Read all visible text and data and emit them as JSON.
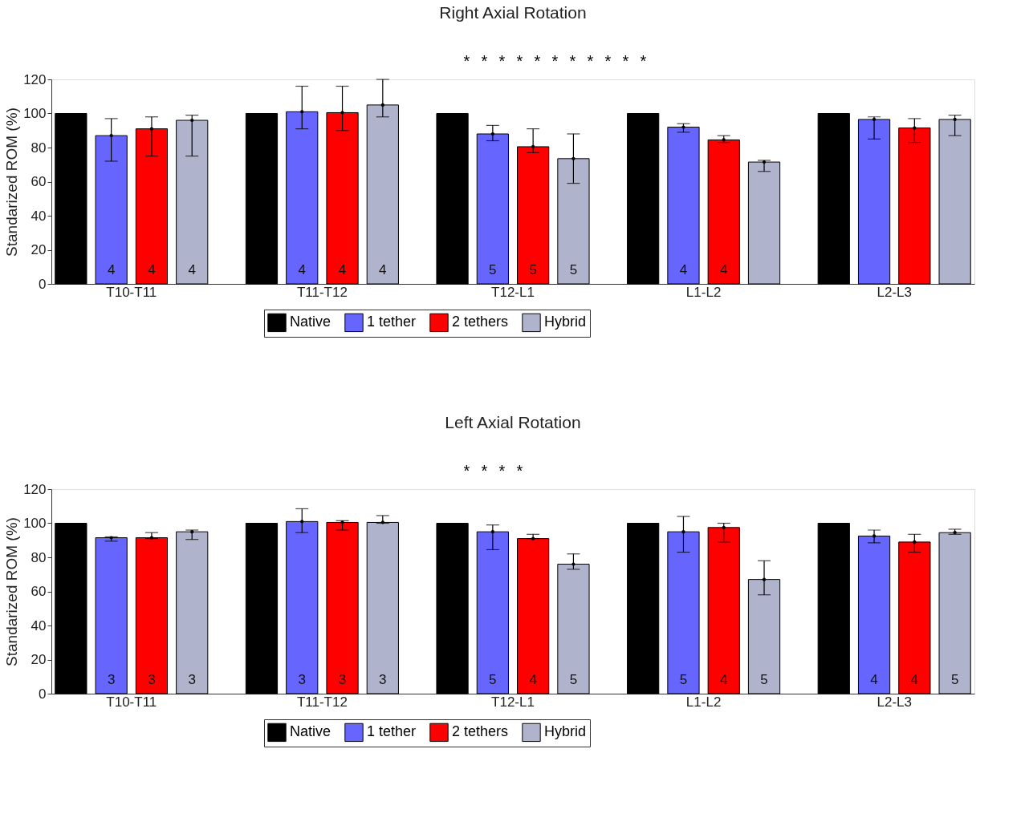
{
  "chart_data": [
    {
      "type": "bar",
      "title": "Right Axial Rotation",
      "ylabel": "Standarized ROM (%)",
      "categories": [
        "T10-T11",
        "T11-T12",
        "T12-L1",
        "L1-L2",
        "L2-L3"
      ],
      "ylim": [
        0,
        120
      ],
      "yticks": [
        0,
        20,
        40,
        60,
        80,
        100,
        120
      ],
      "grid": false,
      "legend": "bottom",
      "series": [
        {
          "name": "Native",
          "color": "#000000",
          "values": [
            100,
            100,
            100,
            100,
            100
          ]
        },
        {
          "name": "1 tether",
          "color": "#6666ff",
          "values": [
            87,
            101,
            88,
            92,
            96.5
          ],
          "errors": [
            [
              72,
              97
            ],
            [
              91,
              116
            ],
            [
              84,
              93
            ],
            [
              89,
              94
            ],
            [
              85,
              98
            ]
          ]
        },
        {
          "name": "2 tethers",
          "color": "#ff0000",
          "values": [
            91,
            100.5,
            80.5,
            84.5,
            91.5
          ],
          "errors": [
            [
              75,
              98
            ],
            [
              90,
              116
            ],
            [
              77,
              91
            ],
            [
              83,
              87
            ],
            [
              83,
              97
            ]
          ]
        },
        {
          "name": "Hybrid",
          "color": "#b0b3cc",
          "values": [
            96,
            105,
            73.5,
            71.5,
            96.5
          ],
          "errors": [
            [
              75,
              99
            ],
            [
              98,
              120
            ],
            [
              59,
              88
            ],
            [
              66,
              72.5
            ],
            [
              87,
              99
            ]
          ]
        }
      ],
      "annotations": [
        "*",
        "*",
        "*",
        "*",
        "*",
        "*",
        "*",
        "*",
        "*",
        "*",
        "*",
        "4",
        "4",
        "4",
        "4",
        "4",
        "4",
        "5",
        "5",
        "5",
        "4",
        "4"
      ]
    },
    {
      "type": "bar",
      "title": "Left Axial Rotation",
      "ylabel": "Standarized ROM (%)",
      "categories": [
        "T10-T11",
        "T11-T12",
        "T12-L1",
        "L1-L2",
        "L2-L3"
      ],
      "ylim": [
        0,
        120
      ],
      "yticks": [
        0,
        20,
        40,
        60,
        80,
        100,
        120
      ],
      "grid": false,
      "legend": "bottom",
      "series": [
        {
          "name": "Native",
          "color": "#000000",
          "values": [
            100,
            100,
            100,
            100,
            100
          ]
        },
        {
          "name": "1 tether",
          "color": "#6666ff",
          "values": [
            91.5,
            101,
            95,
            95,
            92.5
          ],
          "errors": [
            [
              89.5,
              92
            ],
            [
              94.5,
              108.5
            ],
            [
              84.5,
              99
            ],
            [
              83,
              104
            ],
            [
              88.5,
              96
            ]
          ]
        },
        {
          "name": "2 tethers",
          "color": "#ff0000",
          "values": [
            91.5,
            100.5,
            91,
            97.5,
            89
          ],
          "errors": [
            [
              91,
              94.5
            ],
            [
              96,
              101.5
            ],
            [
              91,
              93.5
            ],
            [
              89,
              100
            ],
            [
              83,
              93.5
            ]
          ]
        },
        {
          "name": "Hybrid",
          "color": "#b0b3cc",
          "values": [
            95,
            100.5,
            76,
            67,
            94.5
          ],
          "errors": [
            [
              90.5,
              96
            ],
            [
              100,
              104.5
            ],
            [
              73,
              82
            ],
            [
              58,
              78
            ],
            [
              93.5,
              96.5
            ]
          ]
        }
      ],
      "annotations": [
        "*",
        "*",
        "*",
        "*",
        "3",
        "3",
        "3",
        "3",
        "3",
        "3",
        "5",
        "4",
        "5",
        "5",
        "4",
        "5",
        "4",
        "4",
        "5"
      ]
    }
  ]
}
